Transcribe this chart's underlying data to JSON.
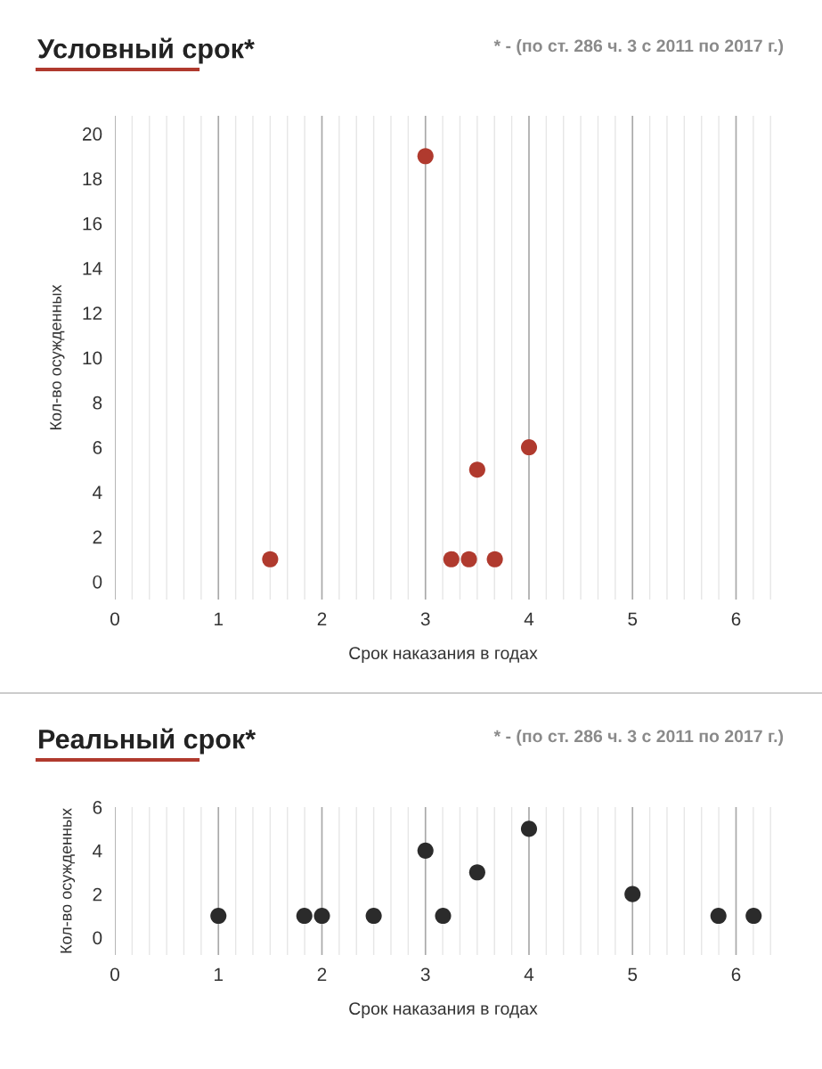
{
  "chart_data": [
    {
      "type": "scatter",
      "title": "Условный срок*",
      "annotations": [
        "* - (по ст. 286 ч. 3 с 2011 по 2017 г.)"
      ],
      "xlabel": "Срок наказания в годах",
      "ylabel": "Кол-во осужденных",
      "series": [
        {
          "color": "#b03a2e",
          "x": [
            1.5,
            3,
            3.25,
            3.42,
            3.5,
            3.67,
            4
          ],
          "values": [
            1,
            19,
            1,
            1,
            5,
            1,
            6
          ]
        }
      ],
      "xlim": [
        0,
        6.34
      ],
      "xticks": [
        0,
        1,
        2,
        3,
        4,
        5,
        6
      ],
      "ylim": [
        -0.8,
        20.8
      ],
      "yticks": [
        0,
        2,
        4,
        6,
        8,
        10,
        12,
        14,
        16,
        18,
        20
      ],
      "grid": "x",
      "marker": "circle"
    },
    {
      "type": "scatter",
      "title": "Реальный срок*",
      "annotations": [
        "* - (по ст. 286 ч. 3 с 2011 по 2017 г.)"
      ],
      "xlabel": "Срок наказания в годах",
      "ylabel": "Кол-во осужденных",
      "series": [
        {
          "color": "#2b2b2b",
          "x": [
            1,
            1.83,
            2,
            2.5,
            3,
            3.17,
            3.5,
            4,
            5,
            5.83,
            6.17
          ],
          "values": [
            1,
            1,
            1,
            1,
            4,
            1,
            3,
            5,
            2,
            1,
            1
          ]
        }
      ],
      "xlim": [
        0,
        6.34
      ],
      "xticks": [
        0,
        1,
        2,
        3,
        4,
        5,
        6
      ],
      "ylim": [
        -0.8,
        6
      ],
      "yticks": [
        0,
        2,
        4,
        6
      ],
      "grid": "x",
      "marker": "circle"
    }
  ]
}
